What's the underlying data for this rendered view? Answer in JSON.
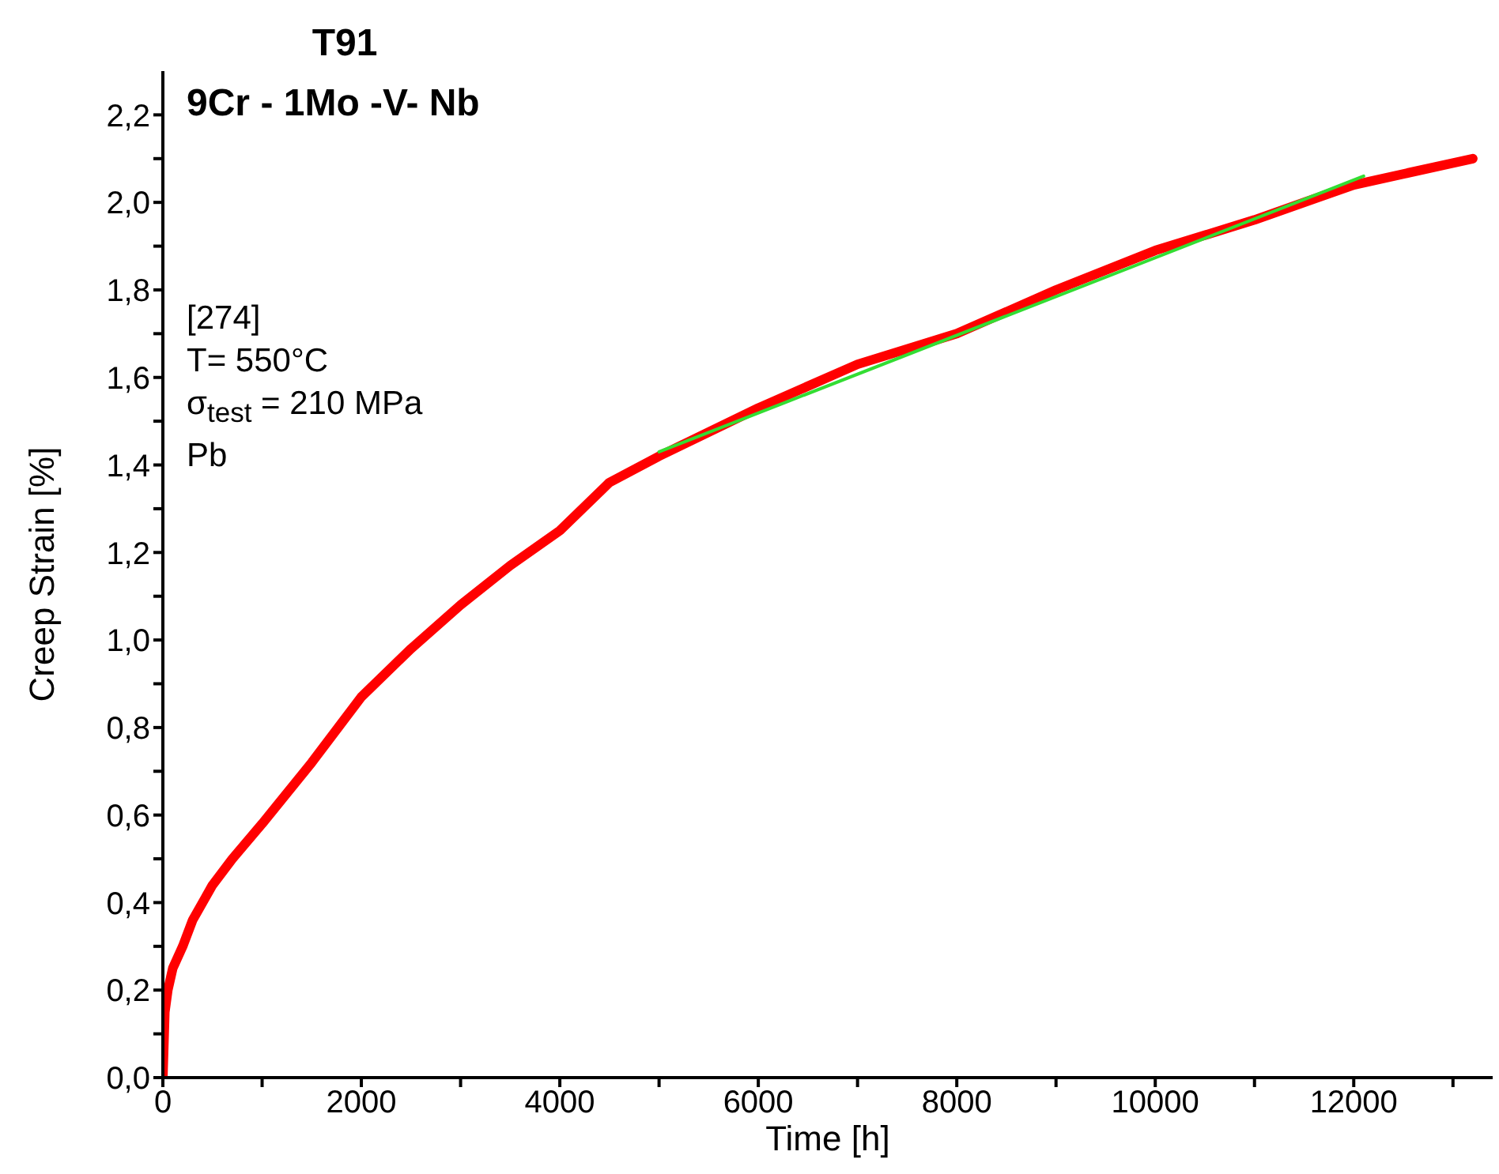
{
  "chart_data": {
    "type": "line",
    "title": "T91",
    "subtitle": "9Cr - 1Mo -V- Nb",
    "xlabel": "Time [h]",
    "ylabel": "Creep Strain [%]",
    "annotations": [
      "[274]",
      "T= 550°C",
      "σ$_{test}$ = 210 MPa",
      "Pb"
    ],
    "series": [
      {
        "color": "#ff0000",
        "x": [
          0,
          20,
          50,
          100,
          200,
          300,
          500,
          700,
          1000,
          1500,
          2000,
          2500,
          3000,
          3500,
          4000,
          4500,
          5000,
          6000,
          7000,
          8000,
          9000,
          10000,
          11000,
          12000,
          13000,
          13200
        ],
        "values": [
          0,
          0.15,
          0.2,
          0.25,
          0.3,
          0.36,
          0.44,
          0.5,
          0.58,
          0.72,
          0.87,
          0.98,
          1.08,
          1.17,
          1.25,
          1.36,
          1.42,
          1.53,
          1.63,
          1.7,
          1.8,
          1.89,
          1.96,
          2.04,
          2.09,
          2.1
        ]
      },
      {
        "color": "#33dd33",
        "x": [
          5000,
          12100
        ],
        "values": [
          1.43,
          2.06
        ]
      }
    ],
    "xlim": [
      0,
      13400
    ],
    "xticks": [
      0,
      {
        "value": 1000,
        "label": null
      },
      2000,
      {
        "value": 3000,
        "label": null
      },
      4000,
      {
        "value": 5000,
        "label": null
      },
      6000,
      {
        "value": 7000,
        "label": null
      },
      8000,
      {
        "value": 9000,
        "label": null
      },
      10000,
      {
        "value": 11000,
        "label": null
      },
      12000,
      {
        "value": 13000,
        "label": null
      }
    ],
    "ylim": [
      0,
      2.3
    ],
    "yticks": [
      {
        "value": 0,
        "label": "0,0"
      },
      {
        "value": 0.1,
        "label": null
      },
      {
        "value": 0.2,
        "label": "0,2"
      },
      {
        "value": 0.3,
        "label": null
      },
      {
        "value": 0.4,
        "label": "0,4"
      },
      {
        "value": 0.5,
        "label": null
      },
      {
        "value": 0.6,
        "label": "0,6"
      },
      {
        "value": 0.7,
        "label": null
      },
      {
        "value": 0.8,
        "label": "0,8"
      },
      {
        "value": 0.9,
        "label": null
      },
      {
        "value": 1.0,
        "label": "1,0"
      },
      {
        "value": 1.1,
        "label": null
      },
      {
        "value": 1.2,
        "label": "1,2"
      },
      {
        "value": 1.3,
        "label": null
      },
      {
        "value": 1.4,
        "label": "1,4"
      },
      {
        "value": 1.5,
        "label": null
      },
      {
        "value": 1.6,
        "label": "1,6"
      },
      {
        "value": 1.7,
        "label": null
      },
      {
        "value": 1.8,
        "label": "1,8"
      },
      {
        "value": 1.9,
        "label": null
      },
      {
        "value": 2.0,
        "label": "2,0"
      },
      {
        "value": 2.1,
        "label": null
      },
      {
        "value": 2.2,
        "label": "2,2"
      }
    ],
    "grid": false,
    "legend": false
  }
}
